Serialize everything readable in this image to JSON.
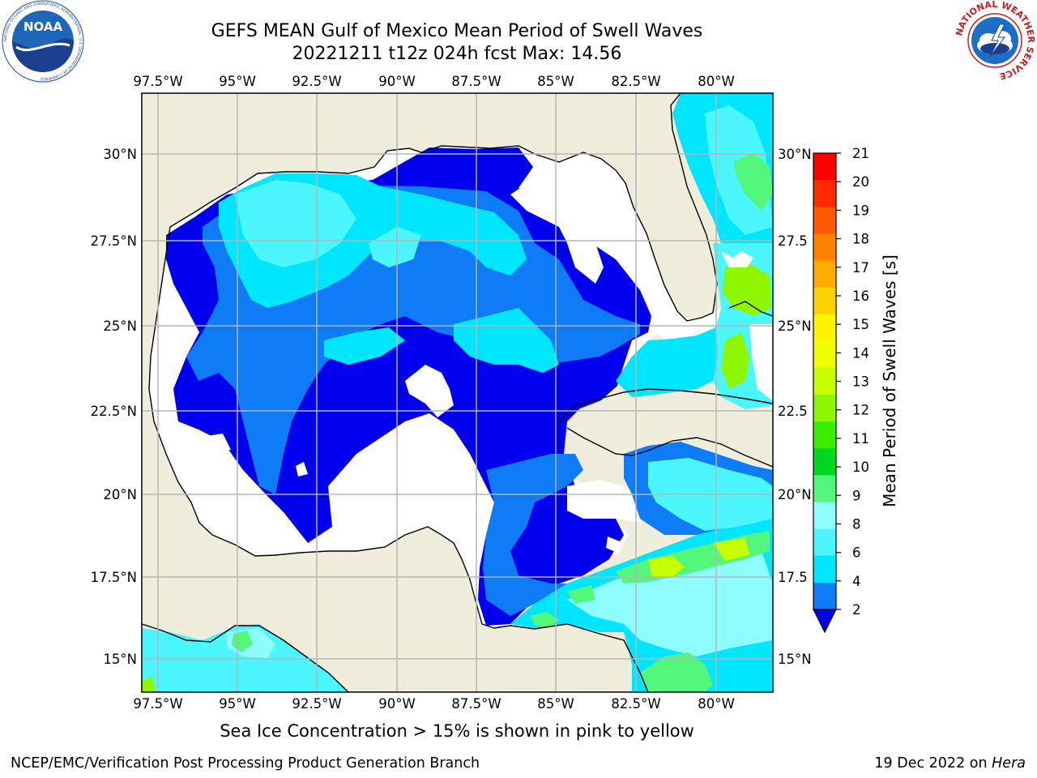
{
  "header": {
    "title_line1": "GEFS MEAN Gulf of Mexico Mean Period of Swell Waves",
    "title_line2": "20221211 t12z 024h fcst   Max: 14.56"
  },
  "logos": {
    "noaa": "NOAA",
    "noaa_ring_text": "NATIONAL OCEANIC AND ATMOSPHERIC ADMINISTRATION · U.S. DEPARTMENT OF COMMERCE",
    "nws_ring_text": "NATIONAL WEATHER SERVICE"
  },
  "map": {
    "lon_ticks": [
      "97.5°W",
      "95°W",
      "92.5°W",
      "90°W",
      "87.5°W",
      "85°W",
      "82.5°W",
      "80°W"
    ],
    "lat_ticks_left": [
      "30°N",
      "27.5°N",
      "25°N",
      "22.5°N",
      "20°N",
      "17.5°N",
      "15°N"
    ],
    "lat_ticks_right": [
      "30°N",
      "27.5",
      "25°N",
      "22.5",
      "20°N",
      "17.5",
      "15°N"
    ],
    "colors": {
      "land": "#efeedd",
      "ocean_low": "#ffffff",
      "blue_2": "#0000ee",
      "blue_3": "#0e7cf6",
      "cyan_4": "#00e6ff",
      "cyan_6": "#4cf6ff",
      "cyan_8": "#8efdff",
      "green_9": "#52f77c",
      "grid": "#b5b5b5"
    }
  },
  "colorbar": {
    "title": "Mean Period of Swell Waves [s]",
    "labels": [
      "21",
      "20",
      "19",
      "18",
      "17",
      "16",
      "15",
      "14",
      "13",
      "12",
      "11",
      "10",
      "9",
      "8",
      "6",
      "4",
      "2"
    ],
    "colors": [
      "#ff0000",
      "#ff2a00",
      "#ff5a00",
      "#ff8300",
      "#ffac00",
      "#ffd200",
      "#fff400",
      "#eeff00",
      "#c8ff00",
      "#8ef700",
      "#3aee00",
      "#00d820",
      "#52f77c",
      "#8efdff",
      "#4cf6ff",
      "#00e6ff",
      "#0e7cf6"
    ],
    "extend_color": "#0000ee"
  },
  "notes": {
    "ice": "Sea Ice Concentration > 15% is shown in pink to yellow",
    "credit": "NCEP/EMC/Verification Post Processing Product Generation Branch",
    "date": "19 Dec 2022 on",
    "machine": "Hera"
  }
}
